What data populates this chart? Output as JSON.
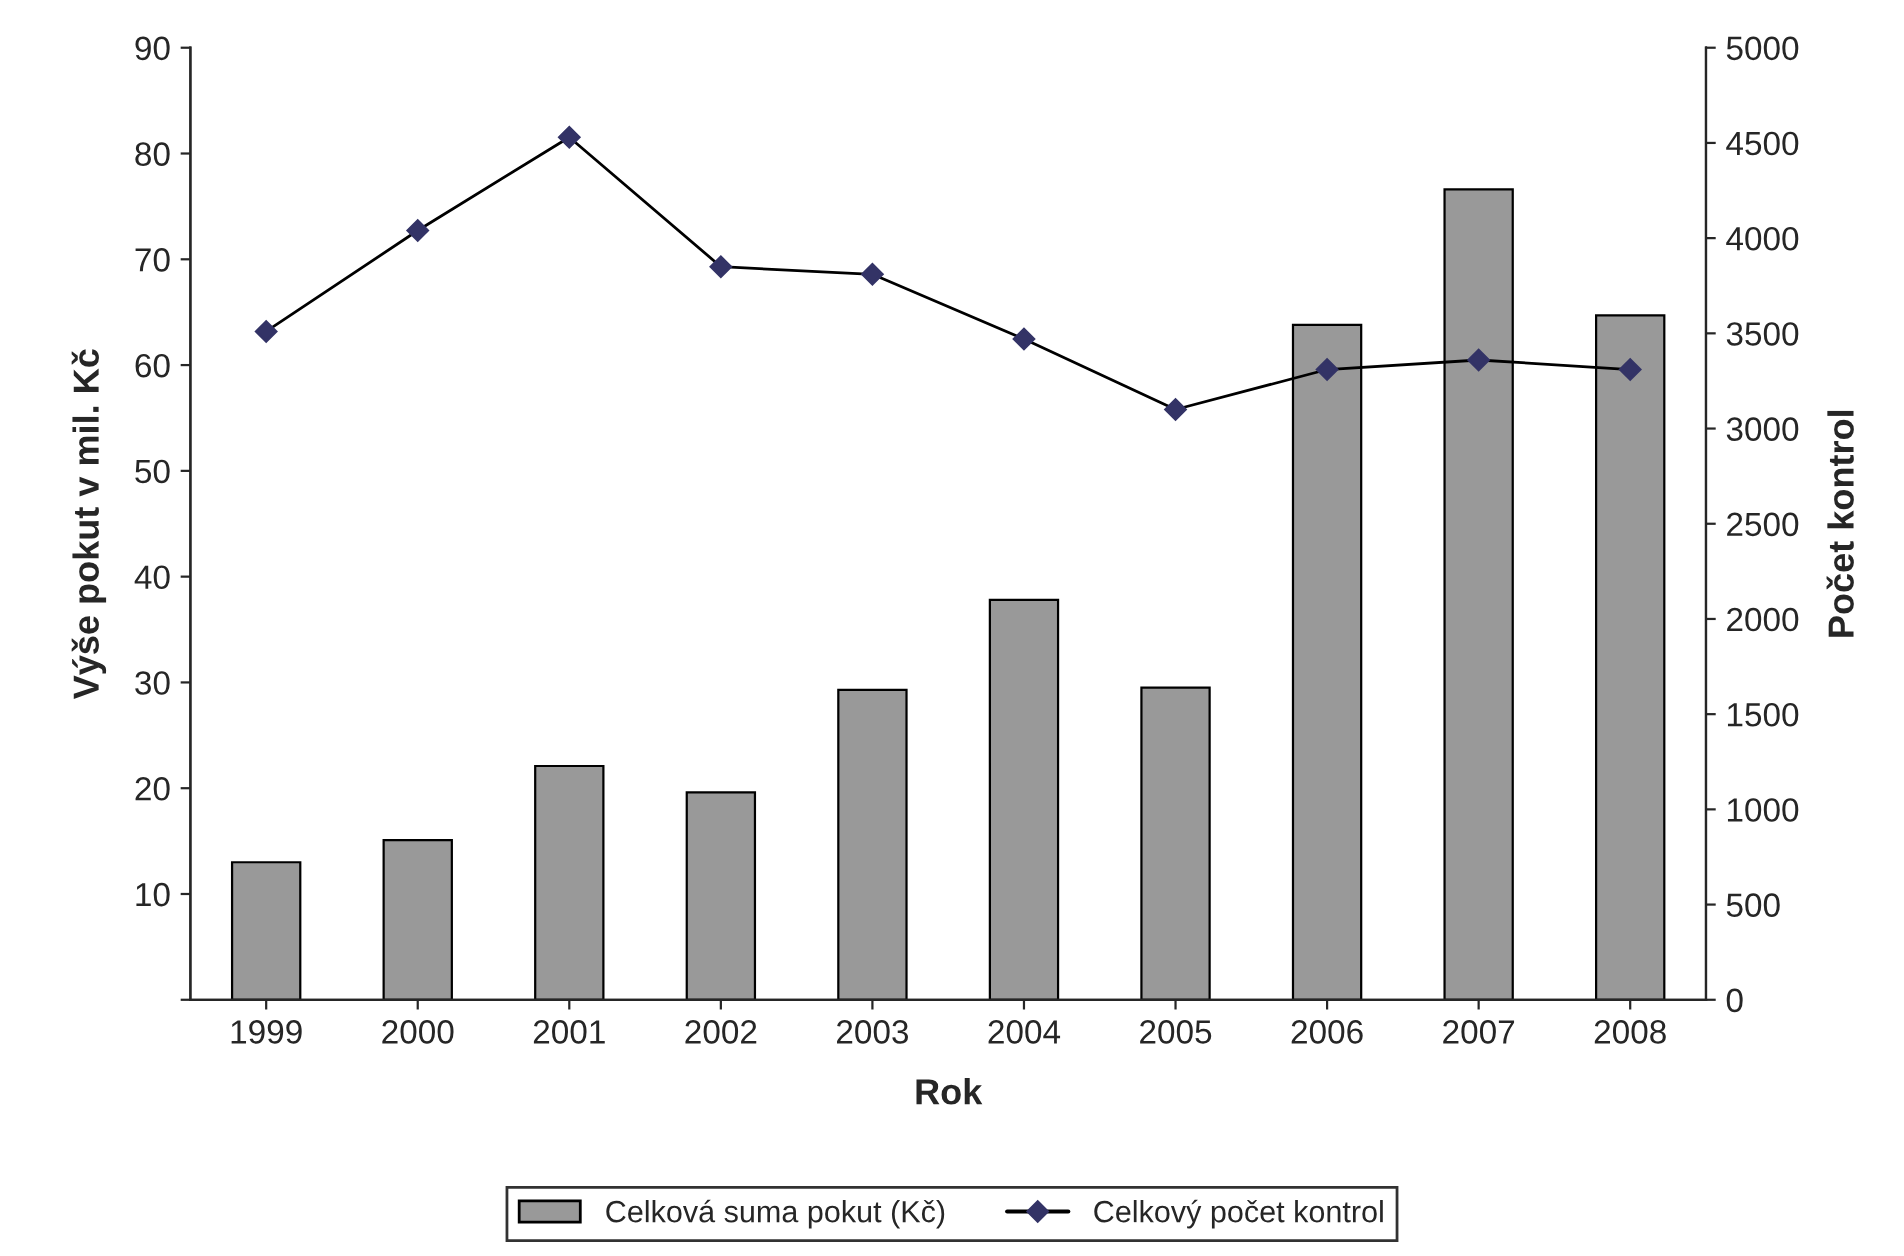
{
  "chart_data": {
    "type": "bar",
    "xlabel": "Rok",
    "ylabel": "Výše pokut v mil. Kč",
    "y2label": "Počet kontrol",
    "categories": [
      "1999",
      "2000",
      "2001",
      "2002",
      "2003",
      "2004",
      "2005",
      "2006",
      "2007",
      "2008"
    ],
    "series": [
      {
        "name": "Celková suma pokut (Kč)",
        "color": "#999999",
        "values": [
          13.0,
          15.1,
          22.1,
          19.6,
          29.3,
          37.8,
          29.5,
          63.8,
          76.6,
          64.7
        ]
      },
      {
        "name": "Celkový počet kontrol",
        "type": "line",
        "axis": "y2",
        "color": "#000000",
        "marker": "diamond",
        "values": [
          3510,
          4040,
          4530,
          3850,
          3810,
          3470,
          3100,
          3310,
          3360,
          3310
        ]
      }
    ],
    "ylim": [
      0,
      90
    ],
    "yticks": [
      {
        "value": 0,
        "label": null
      },
      10,
      20,
      30,
      40,
      50,
      60,
      70,
      80,
      90
    ],
    "y2lim": [
      0,
      5000
    ],
    "y2ticks": [
      0,
      500,
      1000,
      1500,
      2000,
      2500,
      3000,
      3500,
      4000,
      4500,
      5000
    ],
    "grid": false,
    "legend": "bottom"
  }
}
